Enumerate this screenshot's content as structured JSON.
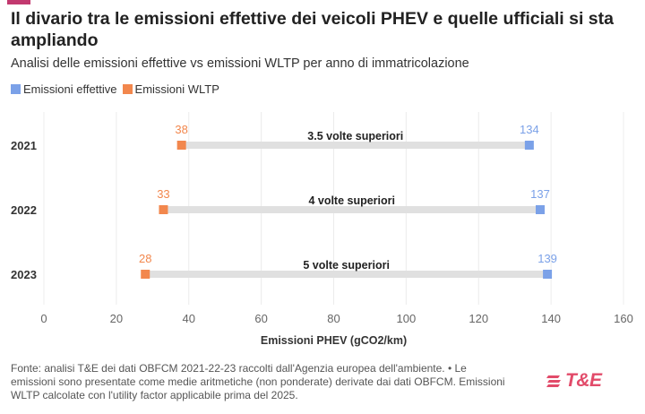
{
  "header": {
    "title": "Il divario tra le emissioni effettive dei veicoli PHEV e quelle ufficiali si sta ampliando",
    "subtitle": "Analisi delle emissioni effettive vs emissioni WLTP per anno di immatricolazione"
  },
  "legend": {
    "effective": "Emissioni effettive",
    "wltp": "Emissioni WLTP"
  },
  "colors": {
    "effective": "#7ba1e8",
    "wltp": "#f2874d",
    "connector": "#e0e0e0",
    "brand": "#e24b6a"
  },
  "chart_data": {
    "type": "dumbbell",
    "xlabel": "Emissioni PHEV (gCO2/km)",
    "xlim": [
      0,
      160
    ],
    "xticks": [
      "0",
      "20",
      "40",
      "60",
      "80",
      "100",
      "120",
      "140",
      "160"
    ],
    "categories": [
      "2021",
      "2022",
      "2023"
    ],
    "series": [
      {
        "name": "Emissioni effettive",
        "values": [
          134,
          137,
          139
        ]
      },
      {
        "name": "Emissioni WLTP",
        "values": [
          38,
          33,
          28
        ]
      }
    ],
    "annotations": [
      "3.5 volte superiori",
      "4 volte superiori",
      "5 volte superiori"
    ]
  },
  "footnote": "Fonte: analisi T&E dei dati OBFCM 2021-22-23 raccolti dall'Agenzia europea dell'ambiente. • Le emissioni sono presentate come medie aritmetiche (non ponderate) derivate dai dati OBFCM. Emissioni WLTP calcolate con l'utility factor applicabile prima del 2025.",
  "logo": {
    "text": "T&E"
  }
}
